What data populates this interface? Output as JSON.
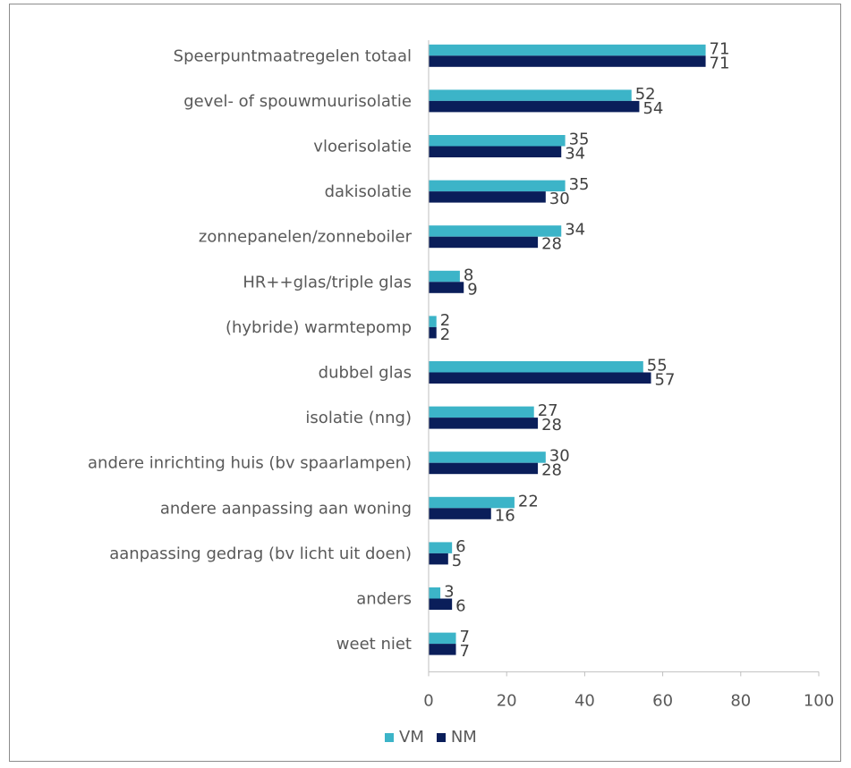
{
  "chart_data": {
    "type": "bar",
    "orientation": "horizontal",
    "categories": [
      "Speerpuntmaatregelen totaal",
      "gevel- of spouwmuurisolatie",
      "vloerisolatie",
      "dakisolatie",
      "zonnepanelen/zonneboiler",
      "HR++glas/triple glas",
      "(hybride) warmtepomp",
      "dubbel glas",
      "isolatie (nng)",
      "andere inrichting huis (bv spaarlampen)",
      "andere aanpassing aan woning",
      "aanpassing gedrag (bv licht uit doen)",
      "anders",
      "weet niet"
    ],
    "series": [
      {
        "name": "VM",
        "color": "#3cb4c8",
        "values": [
          71,
          52,
          35,
          35,
          34,
          8,
          2,
          55,
          27,
          30,
          22,
          6,
          3,
          7
        ]
      },
      {
        "name": "NM",
        "color": "#0a1e5a",
        "values": [
          71,
          54,
          34,
          30,
          28,
          9,
          2,
          57,
          28,
          28,
          16,
          5,
          6,
          7
        ]
      }
    ],
    "xlim": [
      0,
      100
    ],
    "xticks": [
      "0",
      "20",
      "40",
      "60",
      "80",
      "100"
    ],
    "grid": false,
    "legend_position": "bottom"
  }
}
